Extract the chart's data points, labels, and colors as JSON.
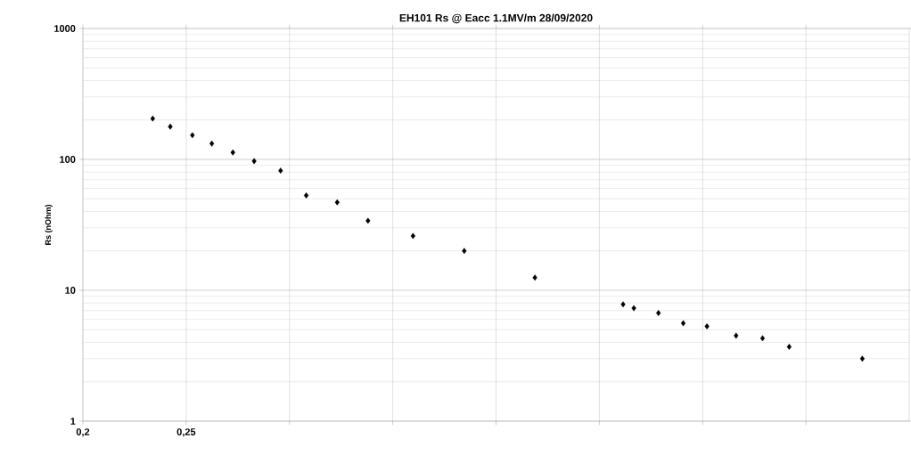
{
  "chart_data": {
    "type": "scatter",
    "title": "EH101 Rs @ Eacc 1.1MV/m      28/09/2020",
    "ylabel": "Rs (nOhm)",
    "x": [
      0.2338,
      0.2423,
      0.253,
      0.2624,
      0.2726,
      0.2829,
      0.2957,
      0.3081,
      0.3231,
      0.338,
      0.3598,
      0.3846,
      0.4188,
      0.4615,
      0.4667,
      0.4786,
      0.4906,
      0.5021,
      0.5162,
      0.529,
      0.5419,
      0.5773
    ],
    "values": [
      205,
      178,
      153,
      132,
      113,
      97,
      82,
      53,
      47,
      34,
      26,
      20,
      12.5,
      7.8,
      7.3,
      6.7,
      5.6,
      5.3,
      4.5,
      4.3,
      3.7,
      3.0
    ],
    "color": "#000000",
    "marker": "diamond",
    "log": "y",
    "grid": true,
    "xlim": [
      0.2,
      0.6
    ],
    "xticks": [
      {
        "value": 0.2,
        "label": "0,2"
      },
      {
        "value": 0.25,
        "label": "0,25"
      },
      {
        "value": 0.3,
        "label": null
      },
      {
        "value": 0.35,
        "label": null
      },
      {
        "value": 0.4,
        "label": null
      },
      {
        "value": 0.45,
        "label": null
      },
      {
        "value": 0.5,
        "label": null
      },
      {
        "value": 0.55,
        "label": null
      }
    ],
    "ylim": [
      1,
      1000
    ],
    "yticks": [
      1,
      10,
      100,
      1000
    ]
  }
}
